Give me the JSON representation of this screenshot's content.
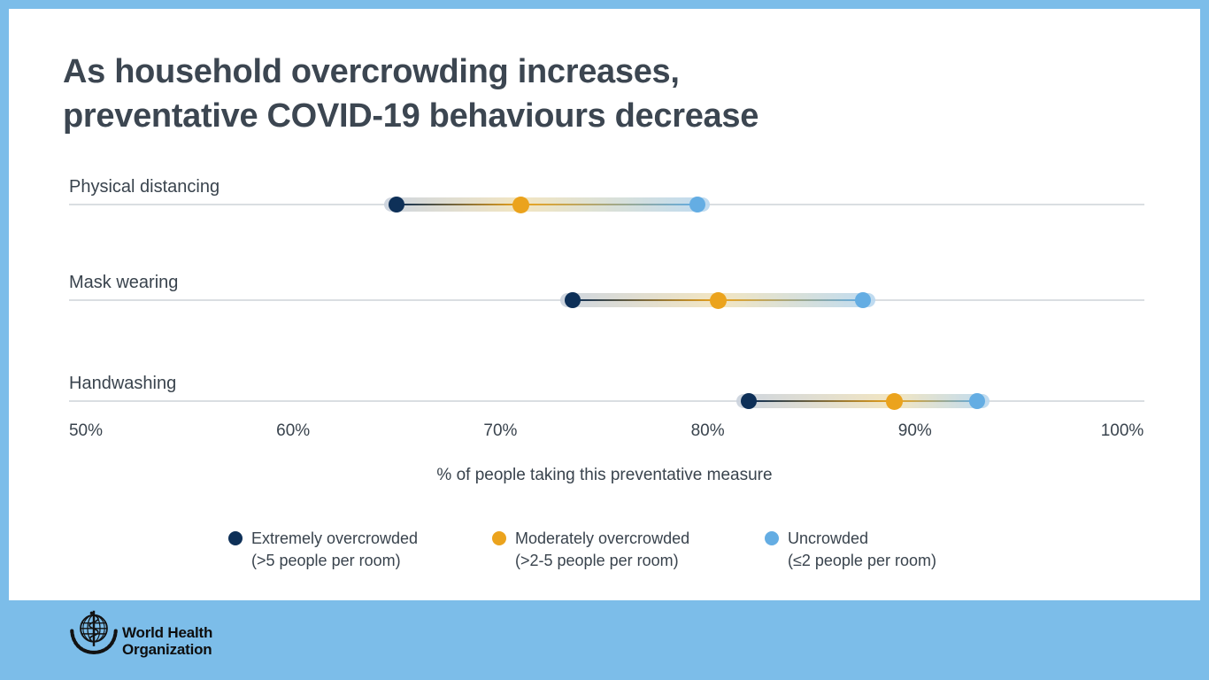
{
  "page": {
    "background_color": "#7CBDE9",
    "card_color": "#FFFFFF"
  },
  "title": {
    "line1": "As household overcrowding increases,",
    "line2": "preventative COVID-19 behaviours decrease"
  },
  "chart_data": {
    "type": "dumbbell-dot-plot",
    "title": "As household overcrowding increases, preventative COVID-19 behaviours decrease",
    "categories": [
      "Physical distancing",
      "Mask wearing",
      "Handwashing"
    ],
    "series": [
      {
        "name": "Extremely overcrowded (>5 people per room)",
        "color": "#0E3058",
        "values": [
          65,
          73.5,
          82
        ]
      },
      {
        "name": "Moderately overcrowded (>2-5 people per room)",
        "color": "#EBA31D",
        "values": [
          71,
          80.5,
          89
        ]
      },
      {
        "name": "Uncrowded (≤2 people per room)",
        "color": "#64ADE3",
        "values": [
          79.5,
          87.5,
          93
        ]
      }
    ],
    "xlabel": "% of people taking this preventative measure",
    "xlim": [
      50,
      100
    ],
    "tick_labels": [
      "50%",
      "60%",
      "70%",
      "80%",
      "90%",
      "100%"
    ],
    "tick_values": [
      50,
      60,
      70,
      80,
      90,
      100
    ],
    "grid": "horizontal baseline per category row",
    "legend_position": "bottom"
  },
  "legend": {
    "items": [
      {
        "label": "Extremely overcrowded",
        "sublabel": "(>5 people per room)",
        "color": "#0E3058"
      },
      {
        "label": "Moderately overcrowded",
        "sublabel": "(>2-5 people per room)",
        "color": "#EBA31D"
      },
      {
        "label": "Uncrowded",
        "sublabel": "(≤2 people per room)",
        "color": "#64ADE3"
      }
    ]
  },
  "footer": {
    "org_name_line1": "World Health",
    "org_name_line2": "Organization"
  }
}
